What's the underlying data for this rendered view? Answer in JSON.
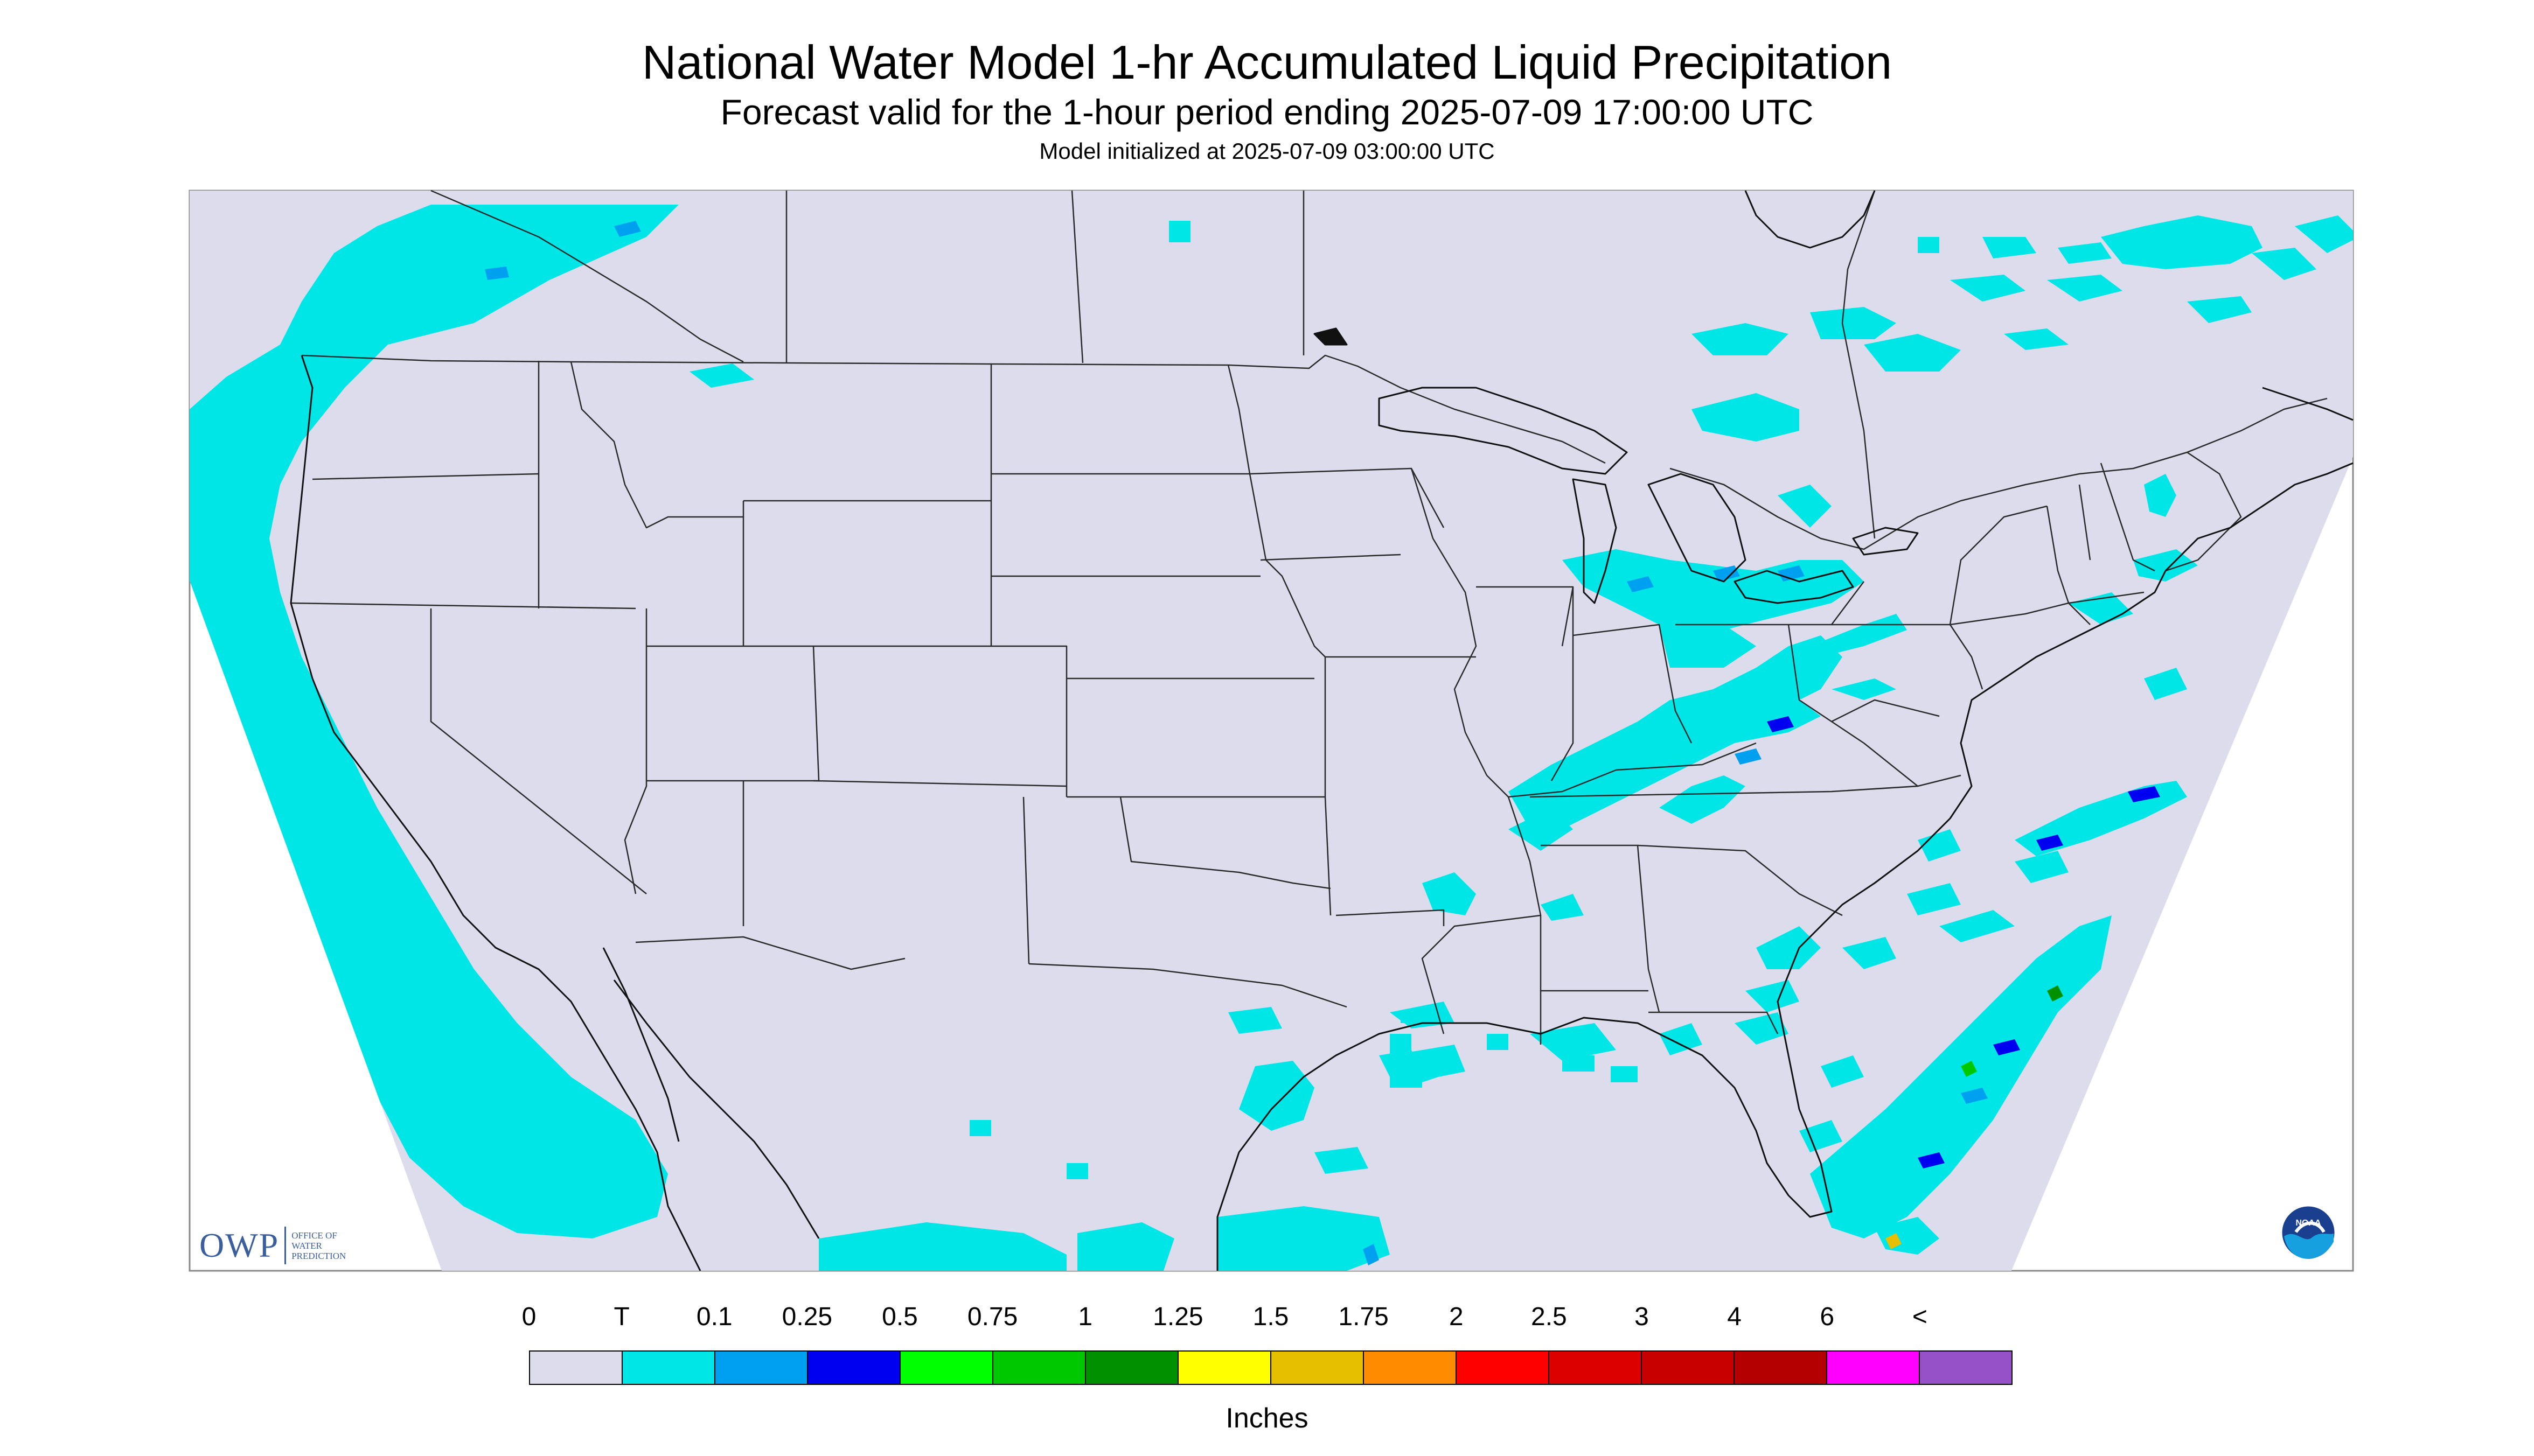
{
  "header": {
    "title": "National Water Model 1-hr Accumulated Liquid Precipitation",
    "subtitle": "Forecast valid for the 1-hour period ending 2025-07-09 17:00:00 UTC",
    "init": "Model initialized at 2025-07-09 03:00:00 UTC"
  },
  "colors": {
    "background": "#ffffff",
    "map_land": "#dcdcec",
    "trace": "#00e6e6",
    "state_lines": "#2a2a2a"
  },
  "logos": {
    "owp_letters": "OWP",
    "owp_sub": "Office of\nWater\nPrediction",
    "noaa": "NOAA"
  },
  "legend": {
    "units": "Inches",
    "labels": [
      "0",
      "T",
      "0.1",
      "0.25",
      "0.5",
      "0.75",
      "1",
      "1.25",
      "1.5",
      "1.75",
      "2",
      "2.5",
      "3",
      "4",
      "6",
      "<"
    ],
    "colors": [
      "#dcdcec",
      "#00e6e6",
      "#00a0f0",
      "#0000f0",
      "#00ff00",
      "#00c800",
      "#009000",
      "#ffff00",
      "#e6c000",
      "#ff8c00",
      "#ff0000",
      "#dc0000",
      "#c80000",
      "#b40000",
      "#ff00ff",
      "#9650c8"
    ]
  }
}
